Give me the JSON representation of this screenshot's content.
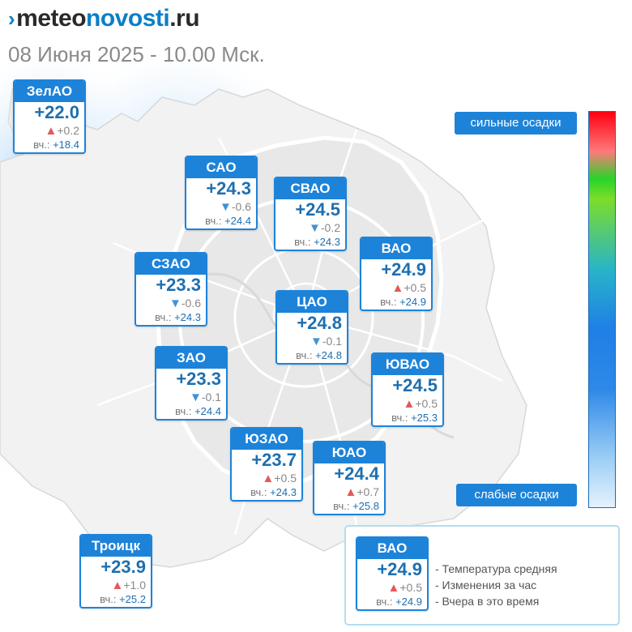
{
  "brand": {
    "logo_part1": "meteo",
    "logo_part2": "novosti",
    "logo_part3": ".ru"
  },
  "subtitle": "08 Июня 2025 - 10.00 Мск.",
  "yesterday_label": "вч.:",
  "districts": [
    {
      "id": "zelao",
      "name": "ЗелАО",
      "temp": "+22.0",
      "dir": "up",
      "change": "+0.2",
      "yesterday": "+18.4"
    },
    {
      "id": "sao",
      "name": "САО",
      "temp": "+24.3",
      "dir": "down",
      "change": "-0.6",
      "yesterday": "+24.4"
    },
    {
      "id": "svao",
      "name": "СВАО",
      "temp": "+24.5",
      "dir": "down",
      "change": "-0.2",
      "yesterday": "+24.3"
    },
    {
      "id": "vao",
      "name": "ВАО",
      "temp": "+24.9",
      "dir": "up",
      "change": "+0.5",
      "yesterday": "+24.9"
    },
    {
      "id": "szao",
      "name": "СЗАО",
      "temp": "+23.3",
      "dir": "down",
      "change": "-0.6",
      "yesterday": "+24.3"
    },
    {
      "id": "cao",
      "name": "ЦАО",
      "temp": "+24.8",
      "dir": "down",
      "change": "-0.1",
      "yesterday": "+24.8"
    },
    {
      "id": "zao",
      "name": "ЗАО",
      "temp": "+23.3",
      "dir": "down",
      "change": "-0.1",
      "yesterday": "+24.4"
    },
    {
      "id": "yuvao",
      "name": "ЮВАО",
      "temp": "+24.5",
      "dir": "up",
      "change": "+0.5",
      "yesterday": "+25.3"
    },
    {
      "id": "yuzao",
      "name": "ЮЗАО",
      "temp": "+23.7",
      "dir": "up",
      "change": "+0.5",
      "yesterday": "+24.3"
    },
    {
      "id": "yuao",
      "name": "ЮАО",
      "temp": "+24.4",
      "dir": "up",
      "change": "+0.7",
      "yesterday": "+25.8"
    },
    {
      "id": "troitsk",
      "name": "Троицк",
      "temp": "+23.9",
      "dir": "up",
      "change": "+1.0",
      "yesterday": "+25.2"
    }
  ],
  "precip_scale": {
    "top_label": "сильные осадки",
    "bottom_label": "слабые осадки"
  },
  "legend": {
    "example": {
      "name": "ВАО",
      "temp": "+24.9",
      "dir": "up",
      "change": "+0.5",
      "yesterday": "+24.9"
    },
    "lines": [
      "- Температура средняя",
      "- Изменения за час",
      "- Вчера в это время"
    ]
  },
  "colors": {
    "brand_blue": "#1d83d9",
    "temp_text": "#1e6fb0",
    "rise": "#e3585a",
    "fall": "#3f92d6"
  }
}
